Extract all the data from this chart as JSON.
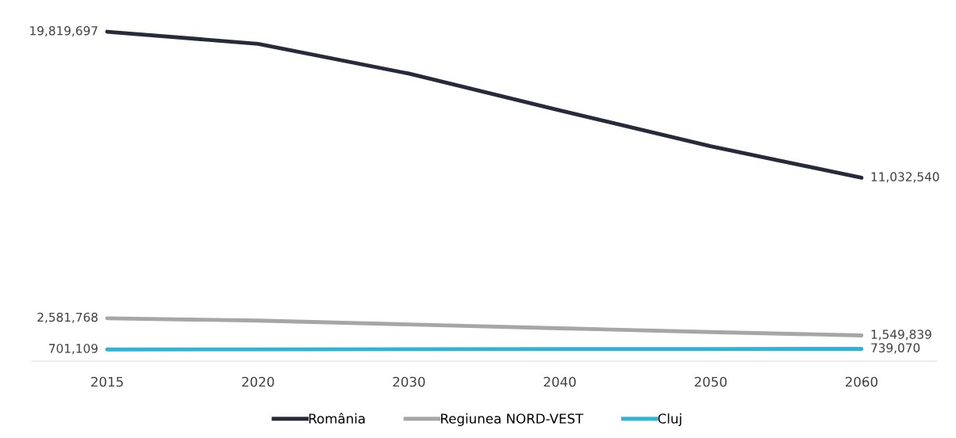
{
  "chart_data": {
    "type": "line",
    "categories": [
      "2015",
      "2020",
      "2030",
      "2040",
      "2050",
      "2060"
    ],
    "series": [
      {
        "name": "România",
        "color": "#262a3a",
        "values": [
          19819697,
          19090000,
          17300000,
          15090000,
          12930000,
          11032540
        ],
        "value_labels": [
          "19,819,697",
          null,
          null,
          null,
          null,
          "11,032,540"
        ]
      },
      {
        "name": "Regiunea NORD-VEST",
        "color": "#a6a6a6",
        "values": [
          2581768,
          2440000,
          2210000,
          1980000,
          1750000,
          1549839
        ],
        "value_labels": [
          "2,581,768",
          null,
          null,
          null,
          null,
          "1,549,839"
        ]
      },
      {
        "name": "Cluj",
        "color": "#2cb5d9",
        "values": [
          701109,
          710000,
          720000,
          730000,
          735000,
          739070
        ],
        "value_labels": [
          "701,109",
          null,
          null,
          null,
          null,
          "739,070"
        ]
      }
    ],
    "tick_labels": "x",
    "grid": false,
    "legend": "bottom",
    "marker": "none",
    "line_style": "solid"
  }
}
